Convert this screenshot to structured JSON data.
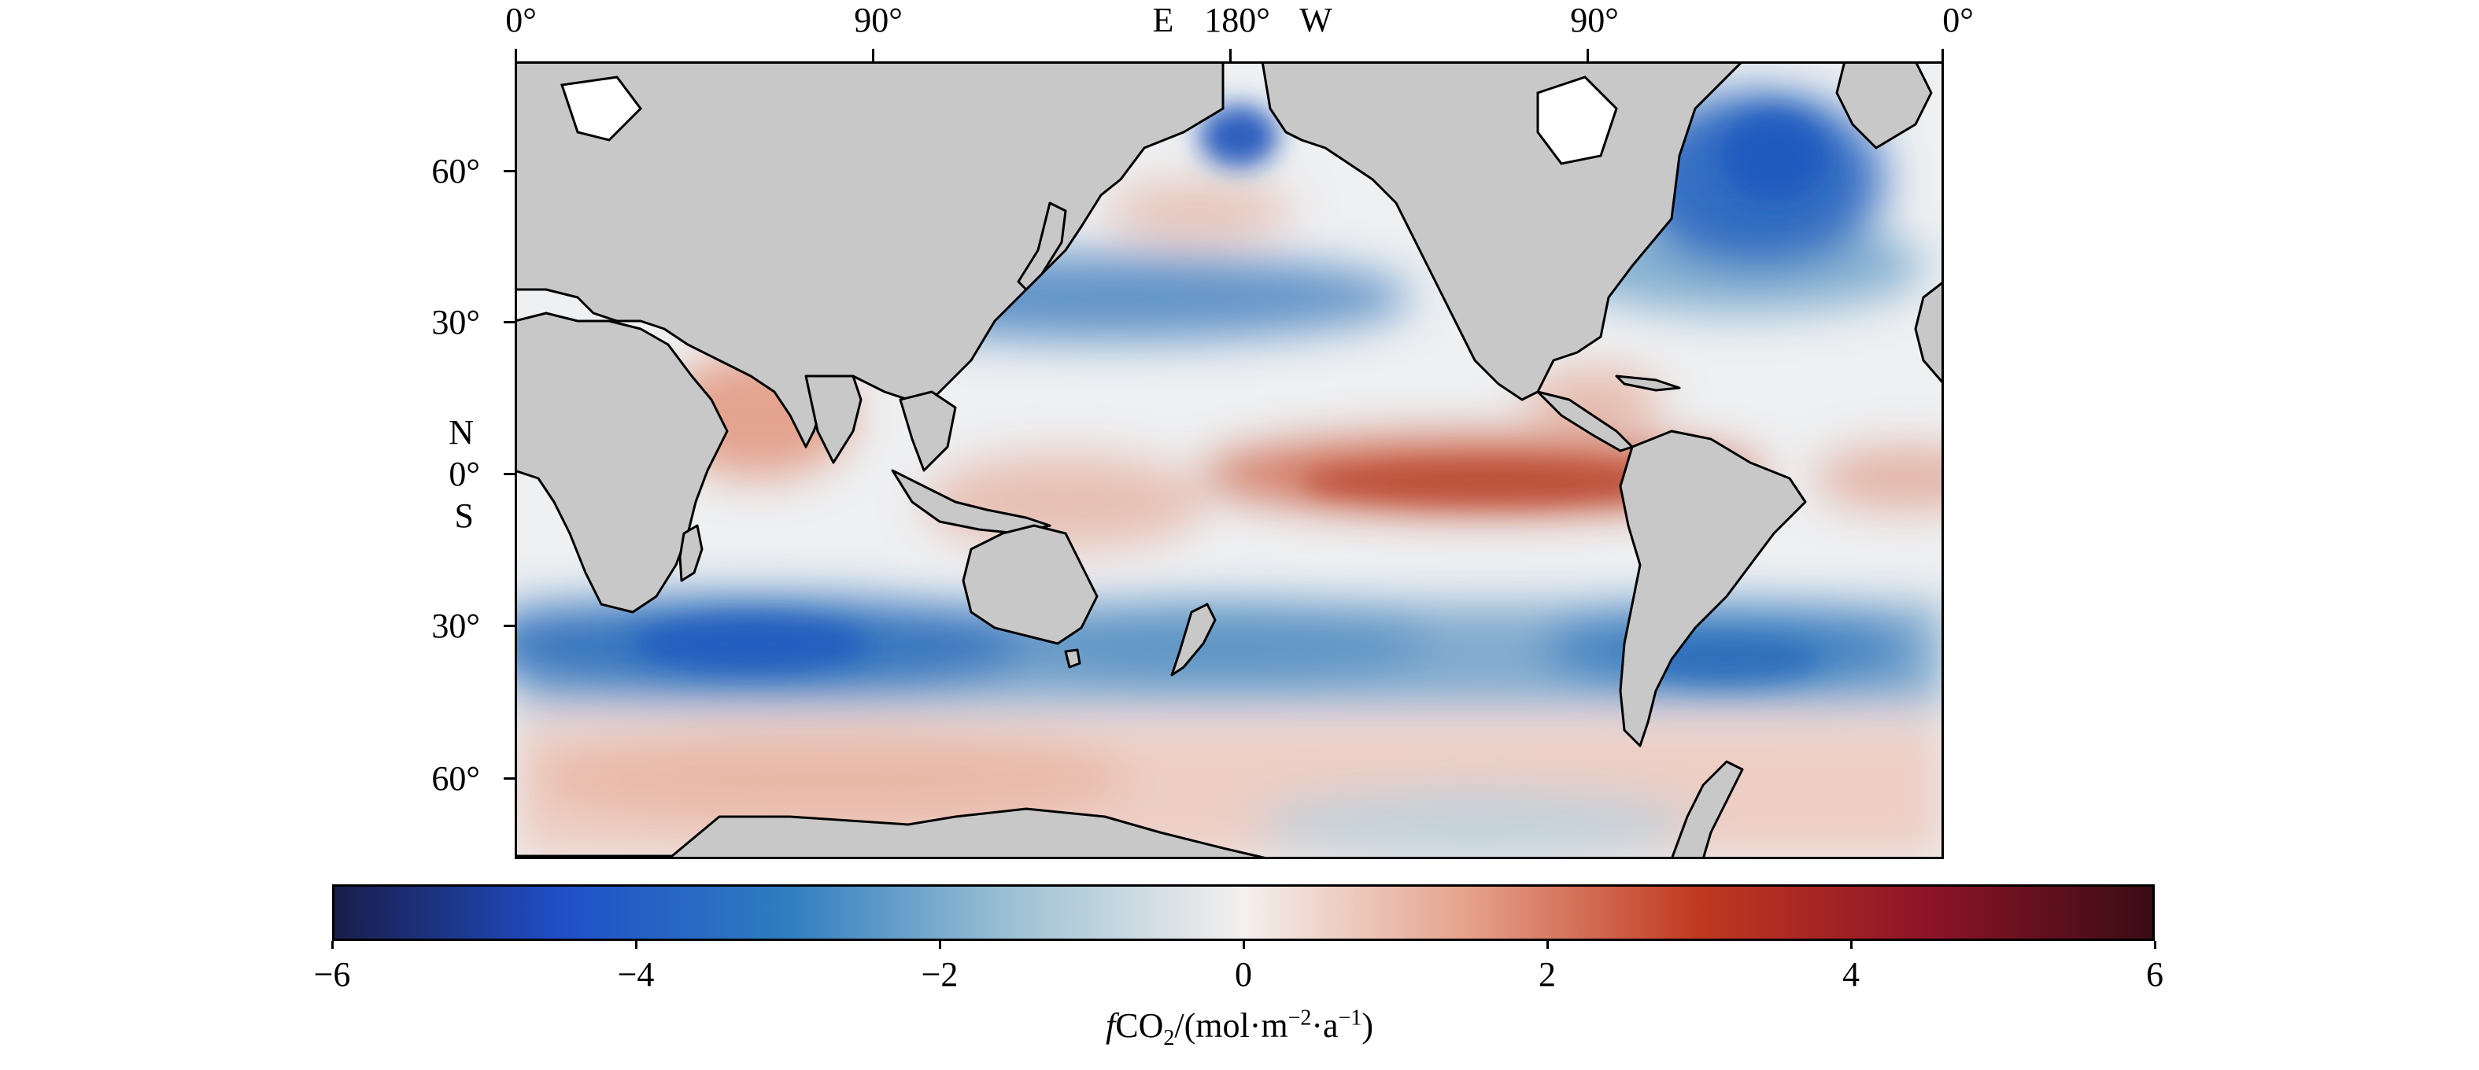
{
  "map": {
    "top_axis_labels": [
      "0°",
      "90°",
      "E",
      "180°",
      "W",
      "90°",
      "0°"
    ],
    "left_axis_labels": [
      "60°",
      "30°",
      "N",
      "0°",
      "S",
      "30°",
      "60°"
    ],
    "land_color": "#c8c8c8",
    "ocean_nodata_color": "#ffffff"
  },
  "colorbar": {
    "ticks": [
      "−6",
      "−4",
      "−2",
      "0",
      "2",
      "4",
      "6"
    ],
    "range": [
      -6,
      6
    ],
    "colors": [
      "#1a1d4a",
      "#1f4fc8",
      "#2f7ec0",
      "#9fc2d4",
      "#f4f0ee",
      "#e5a08a",
      "#c0391f",
      "#8e1428",
      "#3a0c14"
    ],
    "title_prefix": "f",
    "title_main": "CO",
    "title_sub": "2",
    "title_units_a": "/(mol·m",
    "title_sup1": "−2",
    "title_units_b": "·a",
    "title_sup2": "−1",
    "title_units_c": ")"
  }
}
